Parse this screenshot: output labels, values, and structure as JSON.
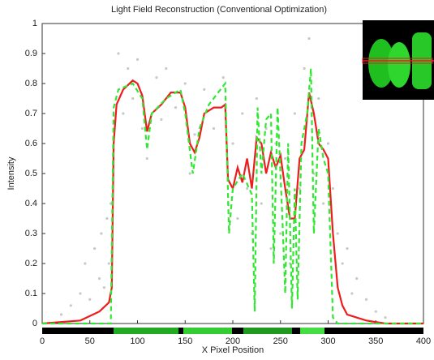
{
  "chart_data": {
    "type": "line",
    "title": "Light Field Reconstruction (Conventional Optimization)",
    "x_label": "X Pixel Position",
    "y_label": "Intensity",
    "xlim": [
      0,
      400
    ],
    "ylim": [
      0,
      1
    ],
    "xticks": [
      0,
      50,
      100,
      150,
      200,
      250,
      300,
      350,
      400
    ],
    "yticks": [
      0,
      0.1,
      0.2,
      0.3,
      0.4,
      0.5,
      0.6,
      0.7,
      0.8,
      0.9,
      1
    ],
    "scatter": {
      "color": "#c8c8c8",
      "x": [
        20,
        30,
        40,
        45,
        50,
        55,
        60,
        62,
        65,
        68,
        70,
        72,
        80,
        85,
        90,
        95,
        100,
        105,
        110,
        120,
        125,
        130,
        140,
        150,
        155,
        160,
        170,
        180,
        190,
        195,
        200,
        205,
        210,
        215,
        220,
        225,
        230,
        235,
        240,
        245,
        250,
        255,
        260,
        265,
        270,
        275,
        280,
        285,
        290,
        295,
        300,
        305,
        310,
        315,
        320,
        325,
        330,
        340,
        350,
        360
      ],
      "y": [
        0.03,
        0.06,
        0.1,
        0.2,
        0.08,
        0.25,
        0.15,
        0.3,
        0.12,
        0.35,
        0.2,
        0.4,
        0.9,
        0.7,
        0.85,
        0.75,
        0.88,
        0.65,
        0.55,
        0.82,
        0.68,
        0.85,
        0.72,
        0.8,
        0.5,
        0.63,
        0.78,
        0.65,
        0.82,
        0.4,
        0.6,
        0.35,
        0.7,
        0.45,
        0.3,
        0.75,
        0.4,
        0.65,
        0.25,
        0.6,
        0.3,
        0.55,
        0.2,
        0.7,
        0.45,
        0.85,
        0.95,
        0.5,
        0.75,
        0.4,
        0.6,
        0.45,
        0.3,
        0.2,
        0.25,
        0.1,
        0.15,
        0.08,
        0.04,
        0.02
      ]
    },
    "series": [
      {
        "color": "#ee1c1c",
        "dashed": false,
        "x": [
          0,
          40,
          60,
          70,
          73,
          75,
          78,
          85,
          95,
          100,
          105,
          110,
          115,
          125,
          135,
          145,
          150,
          155,
          160,
          165,
          170,
          180,
          188,
          192,
          195,
          200,
          205,
          210,
          215,
          220,
          225,
          230,
          235,
          240,
          245,
          250,
          255,
          260,
          265,
          270,
          275,
          280,
          285,
          290,
          295,
          300,
          305,
          310,
          315,
          320,
          340,
          360,
          400
        ],
        "values": [
          0,
          0.01,
          0.04,
          0.07,
          0.12,
          0.6,
          0.73,
          0.78,
          0.81,
          0.8,
          0.76,
          0.64,
          0.7,
          0.73,
          0.77,
          0.77,
          0.72,
          0.6,
          0.57,
          0.62,
          0.7,
          0.72,
          0.72,
          0.73,
          0.48,
          0.45,
          0.52,
          0.47,
          0.55,
          0.45,
          0.62,
          0.6,
          0.5,
          0.57,
          0.52,
          0.56,
          0.45,
          0.35,
          0.35,
          0.55,
          0.58,
          0.77,
          0.7,
          0.6,
          0.58,
          0.55,
          0.3,
          0.12,
          0.06,
          0.03,
          0.01,
          0,
          0
        ]
      },
      {
        "color": "#33e633",
        "dashed": true,
        "x": [
          0,
          72,
          75,
          80,
          95,
          105,
          110,
          115,
          130,
          145,
          150,
          158,
          165,
          175,
          192,
          196,
          200,
          210,
          220,
          223,
          226,
          230,
          235,
          240,
          243,
          247,
          252,
          255,
          258,
          262,
          265,
          268,
          272,
          278,
          282,
          285,
          290,
          295,
          300,
          305,
          310,
          400
        ],
        "values": [
          0,
          0,
          0.72,
          0.78,
          0.8,
          0.75,
          0.58,
          0.7,
          0.75,
          0.78,
          0.7,
          0.5,
          0.65,
          0.73,
          0.8,
          0.3,
          0.45,
          0.5,
          0.43,
          0.04,
          0.72,
          0.5,
          0.68,
          0.7,
          0.2,
          0.72,
          0.35,
          0.1,
          0.6,
          0.05,
          0.45,
          0.08,
          0.6,
          0.7,
          0.85,
          0.3,
          0.65,
          0.55,
          0.5,
          0.02,
          0,
          0
        ]
      }
    ]
  }
}
